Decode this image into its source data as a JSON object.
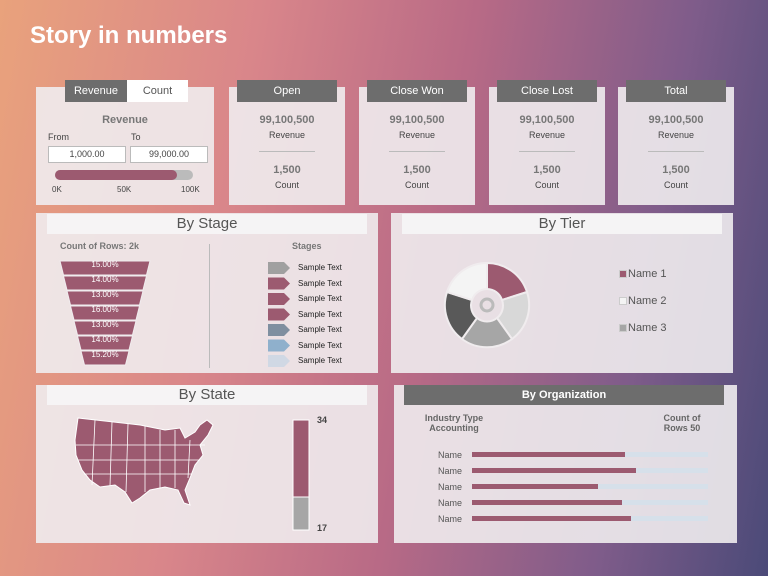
{
  "title": "Story in numbers",
  "filter": {
    "tabs": [
      "Revenue",
      "Count"
    ],
    "label": "Revenue",
    "from_label": "From",
    "to_label": "To",
    "from": "1,000.00",
    "to": "99,000.00",
    "slider_ticks": [
      "0K",
      "50K",
      "100K"
    ]
  },
  "kpis": [
    {
      "title": "Open",
      "revenue": "99,100,500",
      "revenue_label": "Revenue",
      "count": "1,500",
      "count_label": "Count"
    },
    {
      "title": "Close Won",
      "revenue": "99,100,500",
      "revenue_label": "Revenue",
      "count": "1,500",
      "count_label": "Count"
    },
    {
      "title": "Close Lost",
      "revenue": "99,100,500",
      "revenue_label": "Revenue",
      "count": "1,500",
      "count_label": "Count"
    },
    {
      "title": "Total",
      "revenue": "99,100,500",
      "revenue_label": "Revenue",
      "count": "1,500",
      "count_label": "Count"
    }
  ],
  "by_stage": {
    "title": "By Stage",
    "count_label": "Count of Rows: 2k",
    "funnel": [
      "15.00%",
      "14.00%",
      "13.00%",
      "16.00%",
      "13.00%",
      "14.00%",
      "15.20%"
    ],
    "stages_title": "Stages",
    "stages": [
      "Sample Text",
      "Sample Text",
      "Sample Text",
      "Sample Text",
      "Sample Text",
      "Sample Text",
      "Sample Text"
    ]
  },
  "by_tier": {
    "title": "By Tier",
    "legend": [
      "Name 1",
      "Name 2",
      "Name 3"
    ]
  },
  "by_state": {
    "title": "By State",
    "scale": [
      "34",
      "17"
    ]
  },
  "by_organization": {
    "title": "By Organization",
    "column_left": "Industry Type Accounting",
    "column_right": "Count of Rows 50",
    "rows": [
      "Name",
      "Name",
      "Name",
      "Name",
      "Name"
    ]
  }
}
